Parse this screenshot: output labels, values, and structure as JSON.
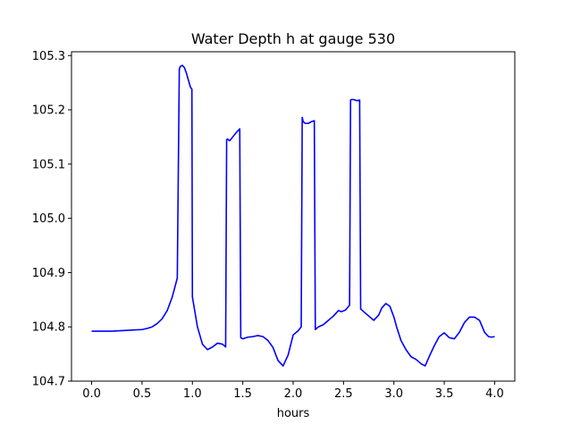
{
  "chart_data": {
    "type": "line",
    "title": "Water Depth h at gauge 530",
    "xlabel": "hours",
    "ylabel": "",
    "xlim": [
      -0.2,
      4.2
    ],
    "ylim": [
      104.7,
      105.307
    ],
    "xticks": [
      0.0,
      0.5,
      1.0,
      1.5,
      2.0,
      2.5,
      3.0,
      3.5,
      4.0
    ],
    "xtick_labels": [
      "0.0",
      "0.5",
      "1.0",
      "1.5",
      "2.0",
      "2.5",
      "3.0",
      "3.5",
      "4.0"
    ],
    "yticks": [
      104.7,
      104.8,
      104.9,
      105.0,
      105.1,
      105.2,
      105.3
    ],
    "ytick_labels": [
      "104.7",
      "104.8",
      "104.9",
      "105.0",
      "105.1",
      "105.2",
      "105.3"
    ],
    "grid": false,
    "series": [
      {
        "color": "#0000ff",
        "x": [
          0.0,
          0.1,
          0.2,
          0.3,
          0.4,
          0.5,
          0.55,
          0.6,
          0.65,
          0.7,
          0.75,
          0.8,
          0.85,
          0.87,
          0.88,
          0.9,
          0.92,
          0.94,
          0.96,
          0.98,
          0.995,
          1.0,
          1.05,
          1.1,
          1.15,
          1.2,
          1.25,
          1.3,
          1.33,
          1.34,
          1.35,
          1.37,
          1.4,
          1.43,
          1.46,
          1.47,
          1.48,
          1.5,
          1.55,
          1.6,
          1.65,
          1.7,
          1.75,
          1.8,
          1.85,
          1.9,
          1.95,
          2.0,
          2.05,
          2.08,
          2.09,
          2.1,
          2.12,
          2.15,
          2.18,
          2.21,
          2.22,
          2.25,
          2.3,
          2.35,
          2.4,
          2.45,
          2.48,
          2.52,
          2.56,
          2.57,
          2.58,
          2.6,
          2.63,
          2.66,
          2.67,
          2.7,
          2.75,
          2.8,
          2.85,
          2.88,
          2.92,
          2.96,
          3.0,
          3.03,
          3.07,
          3.12,
          3.17,
          3.22,
          3.27,
          3.31,
          3.35,
          3.4,
          3.45,
          3.5,
          3.55,
          3.6,
          3.65,
          3.7,
          3.75,
          3.8,
          3.85,
          3.9,
          3.94,
          3.97,
          4.0
        ],
        "y": [
          104.792,
          104.792,
          104.792,
          104.793,
          104.794,
          104.795,
          104.797,
          104.8,
          104.806,
          104.815,
          104.83,
          104.855,
          104.89,
          105.275,
          105.28,
          105.282,
          105.278,
          105.268,
          105.255,
          105.242,
          105.238,
          104.855,
          104.8,
          104.768,
          104.758,
          104.763,
          104.77,
          104.768,
          104.763,
          105.145,
          105.146,
          105.143,
          105.15,
          105.157,
          105.163,
          105.165,
          104.78,
          104.778,
          104.781,
          104.782,
          104.784,
          104.782,
          104.775,
          104.762,
          104.738,
          104.728,
          104.748,
          104.785,
          104.793,
          104.8,
          105.186,
          105.178,
          105.175,
          105.175,
          105.178,
          105.18,
          104.795,
          104.8,
          104.804,
          104.812,
          104.82,
          104.83,
          104.828,
          104.831,
          104.84,
          105.218,
          105.219,
          105.219,
          105.217,
          105.218,
          104.833,
          104.828,
          104.82,
          104.812,
          104.822,
          104.835,
          104.843,
          104.838,
          104.818,
          104.798,
          104.775,
          104.758,
          104.745,
          104.74,
          104.732,
          104.728,
          104.745,
          104.765,
          104.782,
          104.789,
          104.78,
          104.778,
          104.79,
          104.808,
          104.818,
          104.818,
          104.812,
          104.79,
          104.782,
          104.781,
          104.782
        ]
      }
    ]
  }
}
